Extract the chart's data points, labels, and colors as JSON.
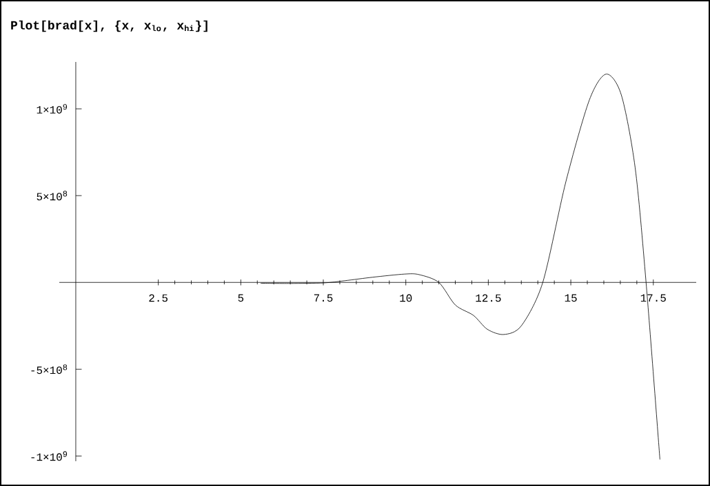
{
  "chart_data": {
    "type": "line",
    "title": "Plot[brad[x], {x, x$_{lo}$, x$_{hi}$}]",
    "x": [
      5.6,
      6.5,
      7.5,
      8.16,
      9.0,
      9.96,
      10.4,
      11.0,
      11.5,
      12.05,
      12.47,
      12.97,
      13.5,
      14.15,
      14.85,
      15.56,
      16.07,
      16.53,
      16.95,
      17.28,
      17.7
    ],
    "series": [
      {
        "color": "#000000",
        "values": [
          -5000000.0,
          -6000000.0,
          -3000000.0,
          10000000.0,
          30000000.0,
          48000000.0,
          45000000.0,
          0.0,
          -130000000.0,
          -190000000.0,
          -270000000.0,
          -300000000.0,
          -250000000.0,
          0.0,
          580000000.0,
          1050000000.0,
          1200000000.0,
          1080000000.0,
          660000000.0,
          0.0,
          -1020000000.0
        ]
      }
    ],
    "xlim": [
      -0.5,
      18.8
    ],
    "ylim": [
      -1030000000.0,
      1270000000.0
    ],
    "xticks": [
      2.5,
      5,
      7.5,
      10,
      12.5,
      15,
      17.5
    ],
    "yticks": [
      {
        "value": -1000000000.0,
        "label": "-1×10$^{9}$"
      },
      {
        "value": -500000000.0,
        "label": "-5×10$^{8}$"
      },
      {
        "value": 500000000.0,
        "label": "5×10$^{8}$"
      },
      {
        "value": 1000000000.0,
        "label": "1×10$^{9}$"
      }
    ],
    "grid": false
  }
}
